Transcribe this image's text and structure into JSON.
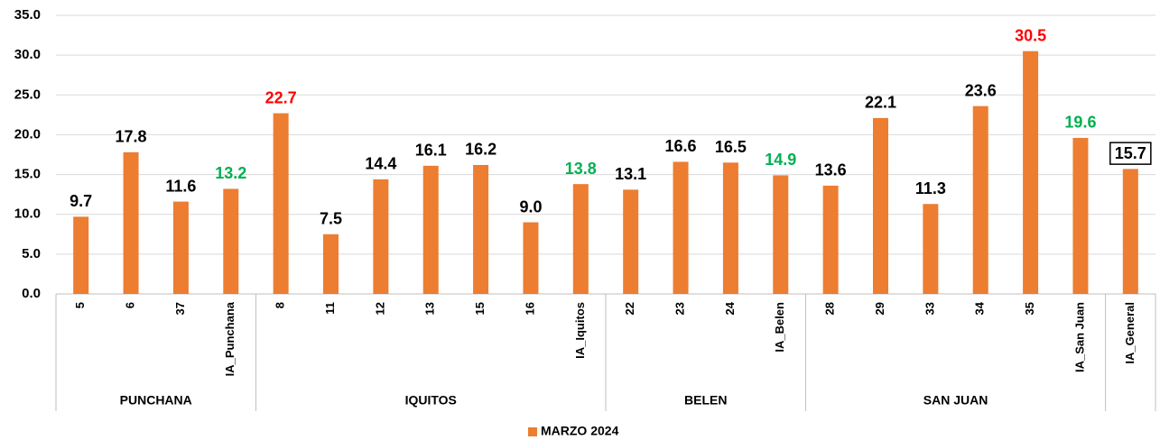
{
  "chart_data": {
    "type": "bar",
    "categories": [
      "5",
      "6",
      "37",
      "IA_Punchana",
      "8",
      "11",
      "12",
      "13",
      "15",
      "16",
      "IA_Iquitos",
      "22",
      "23",
      "24",
      "IA_Belen",
      "28",
      "29",
      "33",
      "34",
      "35",
      "IA_San Juan",
      "IA_General"
    ],
    "series": [
      {
        "name": "MARZO 2024",
        "color": "#ED7D31",
        "values": [
          9.7,
          17.8,
          11.6,
          13.2,
          22.7,
          7.5,
          14.4,
          16.1,
          16.2,
          9.0,
          13.8,
          13.1,
          16.6,
          16.5,
          14.9,
          13.6,
          22.1,
          11.3,
          23.6,
          30.5,
          19.6,
          15.7
        ],
        "value_labels": [
          "9.7",
          "17.8",
          "11.6",
          "13.2",
          "22.7",
          "7.5",
          "14.4",
          "16.1",
          "16.2",
          "9.0",
          "13.8",
          "13.1",
          "16.6",
          "16.5",
          "14.9",
          "13.6",
          "22.1",
          "11.3",
          "23.6",
          "30.5",
          "19.6",
          "15.7"
        ],
        "label_colors": [
          "#000000",
          "#000000",
          "#000000",
          "#00B050",
          "#FF0000",
          "#000000",
          "#000000",
          "#000000",
          "#000000",
          "#000000",
          "#00B050",
          "#000000",
          "#000000",
          "#000000",
          "#00B050",
          "#000000",
          "#000000",
          "#000000",
          "#000000",
          "#FF0000",
          "#00B050",
          "#000000"
        ]
      }
    ],
    "boxed_label_index": 21,
    "groups": [
      {
        "name": "PUNCHANA",
        "span": 4
      },
      {
        "name": "IQUITOS",
        "span": 7
      },
      {
        "name": "BELEN",
        "span": 4
      },
      {
        "name": "SAN JUAN",
        "span": 6
      }
    ],
    "ylim": [
      0,
      35
    ],
    "yticks": [
      {
        "value": 0,
        "label": "0.0"
      },
      {
        "value": 5,
        "label": "5.0"
      },
      {
        "value": 10,
        "label": "10.0"
      },
      {
        "value": 15,
        "label": "15.0"
      },
      {
        "value": 20,
        "label": "20.0"
      },
      {
        "value": 25,
        "label": "25.0"
      },
      {
        "value": 30,
        "label": "30.0"
      },
      {
        "value": 35,
        "label": "35.0"
      }
    ],
    "grid": true,
    "legend": "bottom"
  }
}
